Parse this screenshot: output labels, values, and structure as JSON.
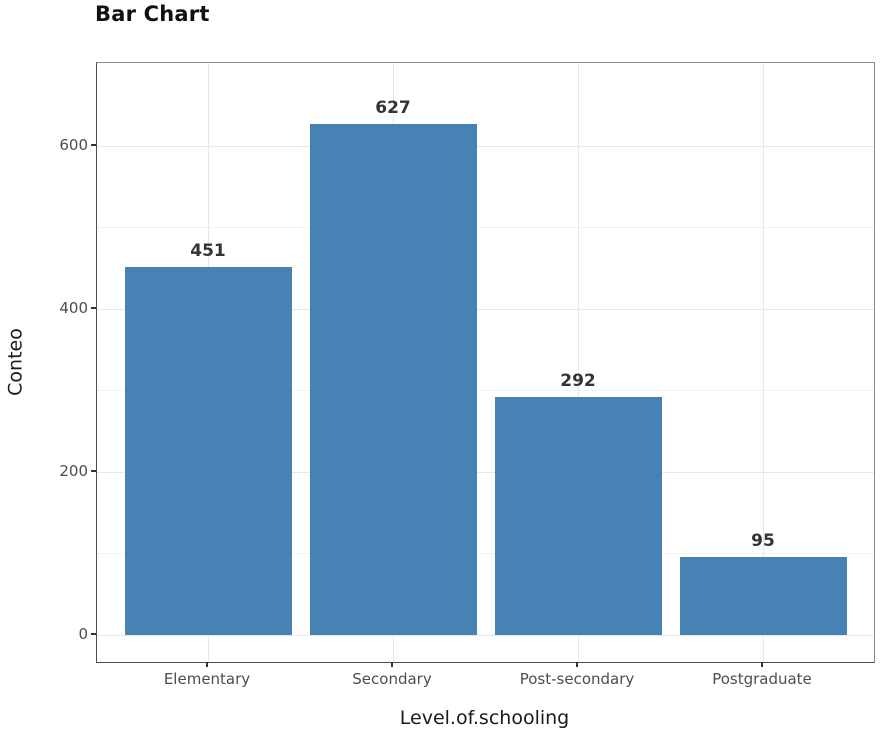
{
  "chart_data": {
    "type": "bar",
    "title": "Bar Chart",
    "xlabel": "Level.of.schooling",
    "ylabel": "Conteo",
    "categories": [
      "Elementary",
      "Secondary",
      "Post-secondary",
      "Postgraduate"
    ],
    "values": [
      451,
      627,
      292,
      95
    ],
    "bar_value_labels": [
      "451",
      "627",
      "292",
      "95"
    ],
    "y_axis": {
      "ticks": [
        0,
        200,
        400,
        600
      ],
      "tick_labels": [
        "0",
        "200",
        "400",
        "600"
      ],
      "minor_gridlines": [
        100,
        300,
        500
      ],
      "range": [
        -33,
        702
      ]
    },
    "grid": "horizontal major+minor and vertical major, light gray on white panel",
    "legend": "none",
    "colors": {
      "bar": "#4682b4",
      "grid_major": "#e7e7e7",
      "grid_minor": "#f2f2f2",
      "tick_label": "#4d4d4d",
      "axis_title": "#1a1a1a",
      "plot_title": "#111111",
      "bar_label": "#333333",
      "tick_mark": "#333333",
      "panel_border_light": "#8c8c8c",
      "panel_border_dark": "#4f4f4f",
      "background": "#ffffff"
    }
  }
}
